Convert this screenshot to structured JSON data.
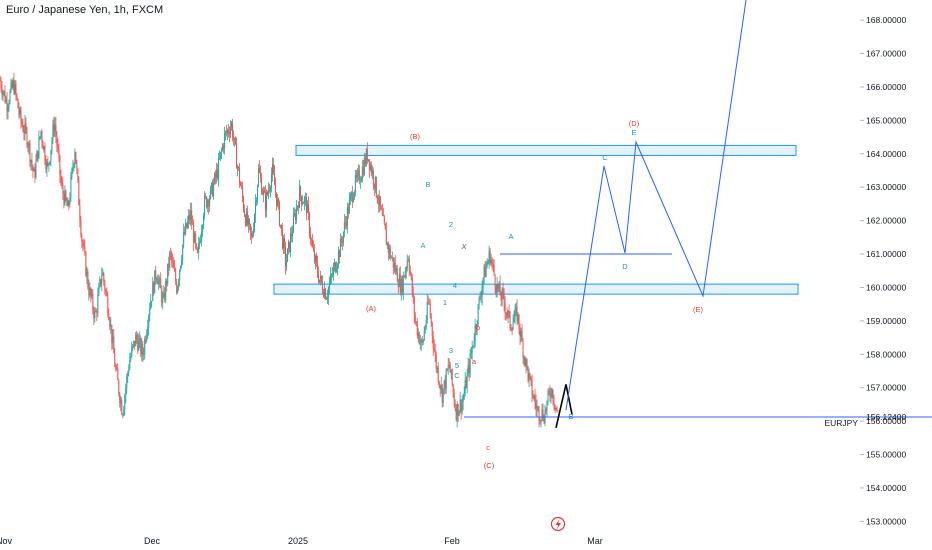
{
  "header": {
    "title": "Euro / Japanese Yen, 1h, FXCM"
  },
  "colors": {
    "up": "#26a69a",
    "down": "#ef5350",
    "line": "#2962ff",
    "wave_red": "#e53935",
    "wave_blue": "#1e88e5",
    "wave_green": "#26a69a",
    "zone_fill": "#e3f2fd",
    "zone_stroke": "#2196f3"
  },
  "icons": {
    "lightning": "lightning-icon"
  },
  "chart_data": {
    "type": "line",
    "title": "Euro / Japanese Yen, 1h, FXCM",
    "symbol": "EURJPY",
    "last_price": "156.12400",
    "ylim": [
      152.8,
      169.6
    ],
    "y_ticks": [
      "168.00000",
      "167.00000",
      "166.00000",
      "165.00000",
      "164.00000",
      "163.00000",
      "162.00000",
      "161.00000",
      "160.00000",
      "159.00000",
      "158.00000",
      "157.00000",
      "156.00000",
      "155.00000",
      "154.00000",
      "153.00000"
    ],
    "x_ticks": [
      "Nov",
      "Dec",
      "2025",
      "Feb",
      "Mar"
    ],
    "grid": false,
    "price_path": [
      166.2,
      165.5,
      166.1,
      165.0,
      164.5,
      163.3,
      164.7,
      163.5,
      165.0,
      163.0,
      162.3,
      164.2,
      161.5,
      160.0,
      159.1,
      160.5,
      159.3,
      157.5,
      156.3,
      157.8,
      158.5,
      158.0,
      159.5,
      160.5,
      159.5,
      161.0,
      160.0,
      161.5,
      162.2,
      160.8,
      162.5,
      162.8,
      163.5,
      164.5,
      164.9,
      163.5,
      162.2,
      161.4,
      163.5,
      162.5,
      163.5,
      162.2,
      160.7,
      161.8,
      162.8,
      162.5,
      161.0,
      160.2,
      159.8,
      160.5,
      161.2,
      162.2,
      163.0,
      163.4,
      164.0,
      163.2,
      162.2,
      161.2,
      160.6,
      160.0,
      161.0,
      159.0,
      158.2,
      159.6,
      157.8,
      156.8,
      157.7,
      156.3,
      156.6,
      157.7,
      159.0,
      160.3,
      161.0,
      160.0,
      159.6,
      158.9,
      159.2,
      158.0,
      157.0,
      156.3,
      156.2,
      157.0,
      156.2
    ],
    "projection_path": [
      [
        156.2,
        156.2
      ],
      [
        157.6,
        163.6
      ],
      [
        158.5,
        161.0
      ],
      [
        159.1,
        164.3
      ],
      [
        161.4,
        159.8
      ],
      [
        163.9,
        170.0
      ]
    ],
    "levels": [
      {
        "name": "support",
        "price": 156.124
      },
      {
        "name": "wave-a-top",
        "price": 161.0
      }
    ],
    "zones": [
      {
        "low": 163.95,
        "high": 164.25
      },
      {
        "low": 159.8,
        "high": 160.1
      }
    ],
    "wave_labels": [
      {
        "text": "(B)",
        "x": 135.2,
        "y": 164.5,
        "color": "red"
      },
      {
        "text": "(A)",
        "x": 132.0,
        "y": 159.3,
        "color": "red"
      },
      {
        "text": "(C)",
        "x": 145.4,
        "y": 155.0,
        "color": "red"
      },
      {
        "text": "c",
        "x": 145.2,
        "y": 156.0,
        "color": "red"
      },
      {
        "text": "b",
        "x": 142.3,
        "y": 158.8,
        "color": "red"
      },
      {
        "text": "a",
        "x": 141.8,
        "y": 157.7,
        "color": "red"
      },
      {
        "text": "(D)",
        "x": 157.9,
        "y": 164.8,
        "color": "red"
      },
      {
        "text": "(E)",
        "x": 161.5,
        "y": 159.3,
        "color": "red"
      },
      {
        "text": "B",
        "x": 137.1,
        "y": 163.0,
        "color": "green"
      },
      {
        "text": "A",
        "x": 136.5,
        "y": 161.2,
        "color": "green"
      },
      {
        "text": "X",
        "x": 140.3,
        "y": 161.2,
        "color": "black"
      },
      {
        "text": "2",
        "x": 138.6,
        "y": 161.9,
        "color": "blue"
      },
      {
        "text": "1",
        "x": 137.9,
        "y": 159.5,
        "color": "blue"
      },
      {
        "text": "4",
        "x": 140.4,
        "y": 160.0,
        "color": "blue"
      },
      {
        "text": "3",
        "x": 138.4,
        "y": 158.0,
        "color": "blue"
      },
      {
        "text": "5",
        "x": 138.7,
        "y": 157.6,
        "color": "blue"
      },
      {
        "text": "C",
        "x": 138.8,
        "y": 157.3,
        "color": "blue"
      },
      {
        "text": "A",
        "x": 146.8,
        "y": 161.5,
        "color": "blue"
      },
      {
        "text": "B",
        "x": 151.6,
        "y": 155.8,
        "color": "blue"
      },
      {
        "text": "C",
        "x": 156.3,
        "y": 163.9,
        "color": "blue"
      },
      {
        "text": "D",
        "x": 157.1,
        "y": 160.8,
        "color": "blue"
      },
      {
        "text": "E",
        "x": 158.2,
        "y": 164.6,
        "color": "blue"
      }
    ]
  }
}
